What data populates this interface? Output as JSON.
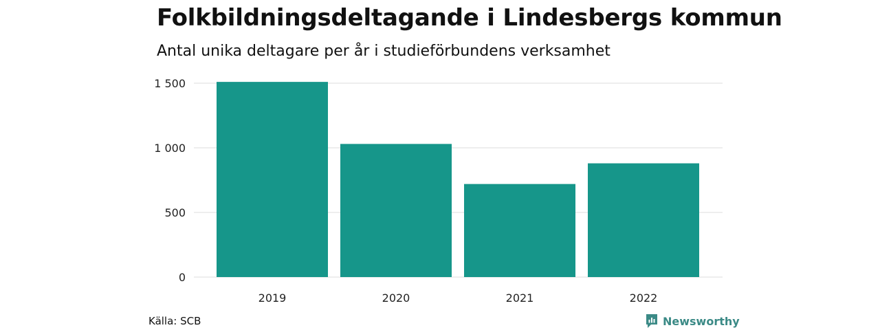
{
  "title": "Folkbildningsdeltagande i Lindesbergs kommun",
  "subtitle": "Antal unika deltagare per år i studieförbundens verksamhet",
  "source": "Källa: SCB",
  "brand": {
    "name": "Newsworthy",
    "icon": "newsworthy-logo-icon",
    "color": "#3b8a86"
  },
  "chart_data": {
    "type": "bar",
    "categories": [
      "2019",
      "2020",
      "2021",
      "2022"
    ],
    "values": [
      1510,
      1030,
      720,
      880
    ],
    "ylim": [
      0,
      1500
    ],
    "yticks": [
      0,
      500,
      1000,
      1500
    ],
    "ytick_labels": [
      "0",
      "500",
      "1 000",
      "1 500"
    ],
    "grid": true,
    "legend": "none",
    "bar_color": "#16968a",
    "xlabel": "",
    "ylabel": ""
  }
}
